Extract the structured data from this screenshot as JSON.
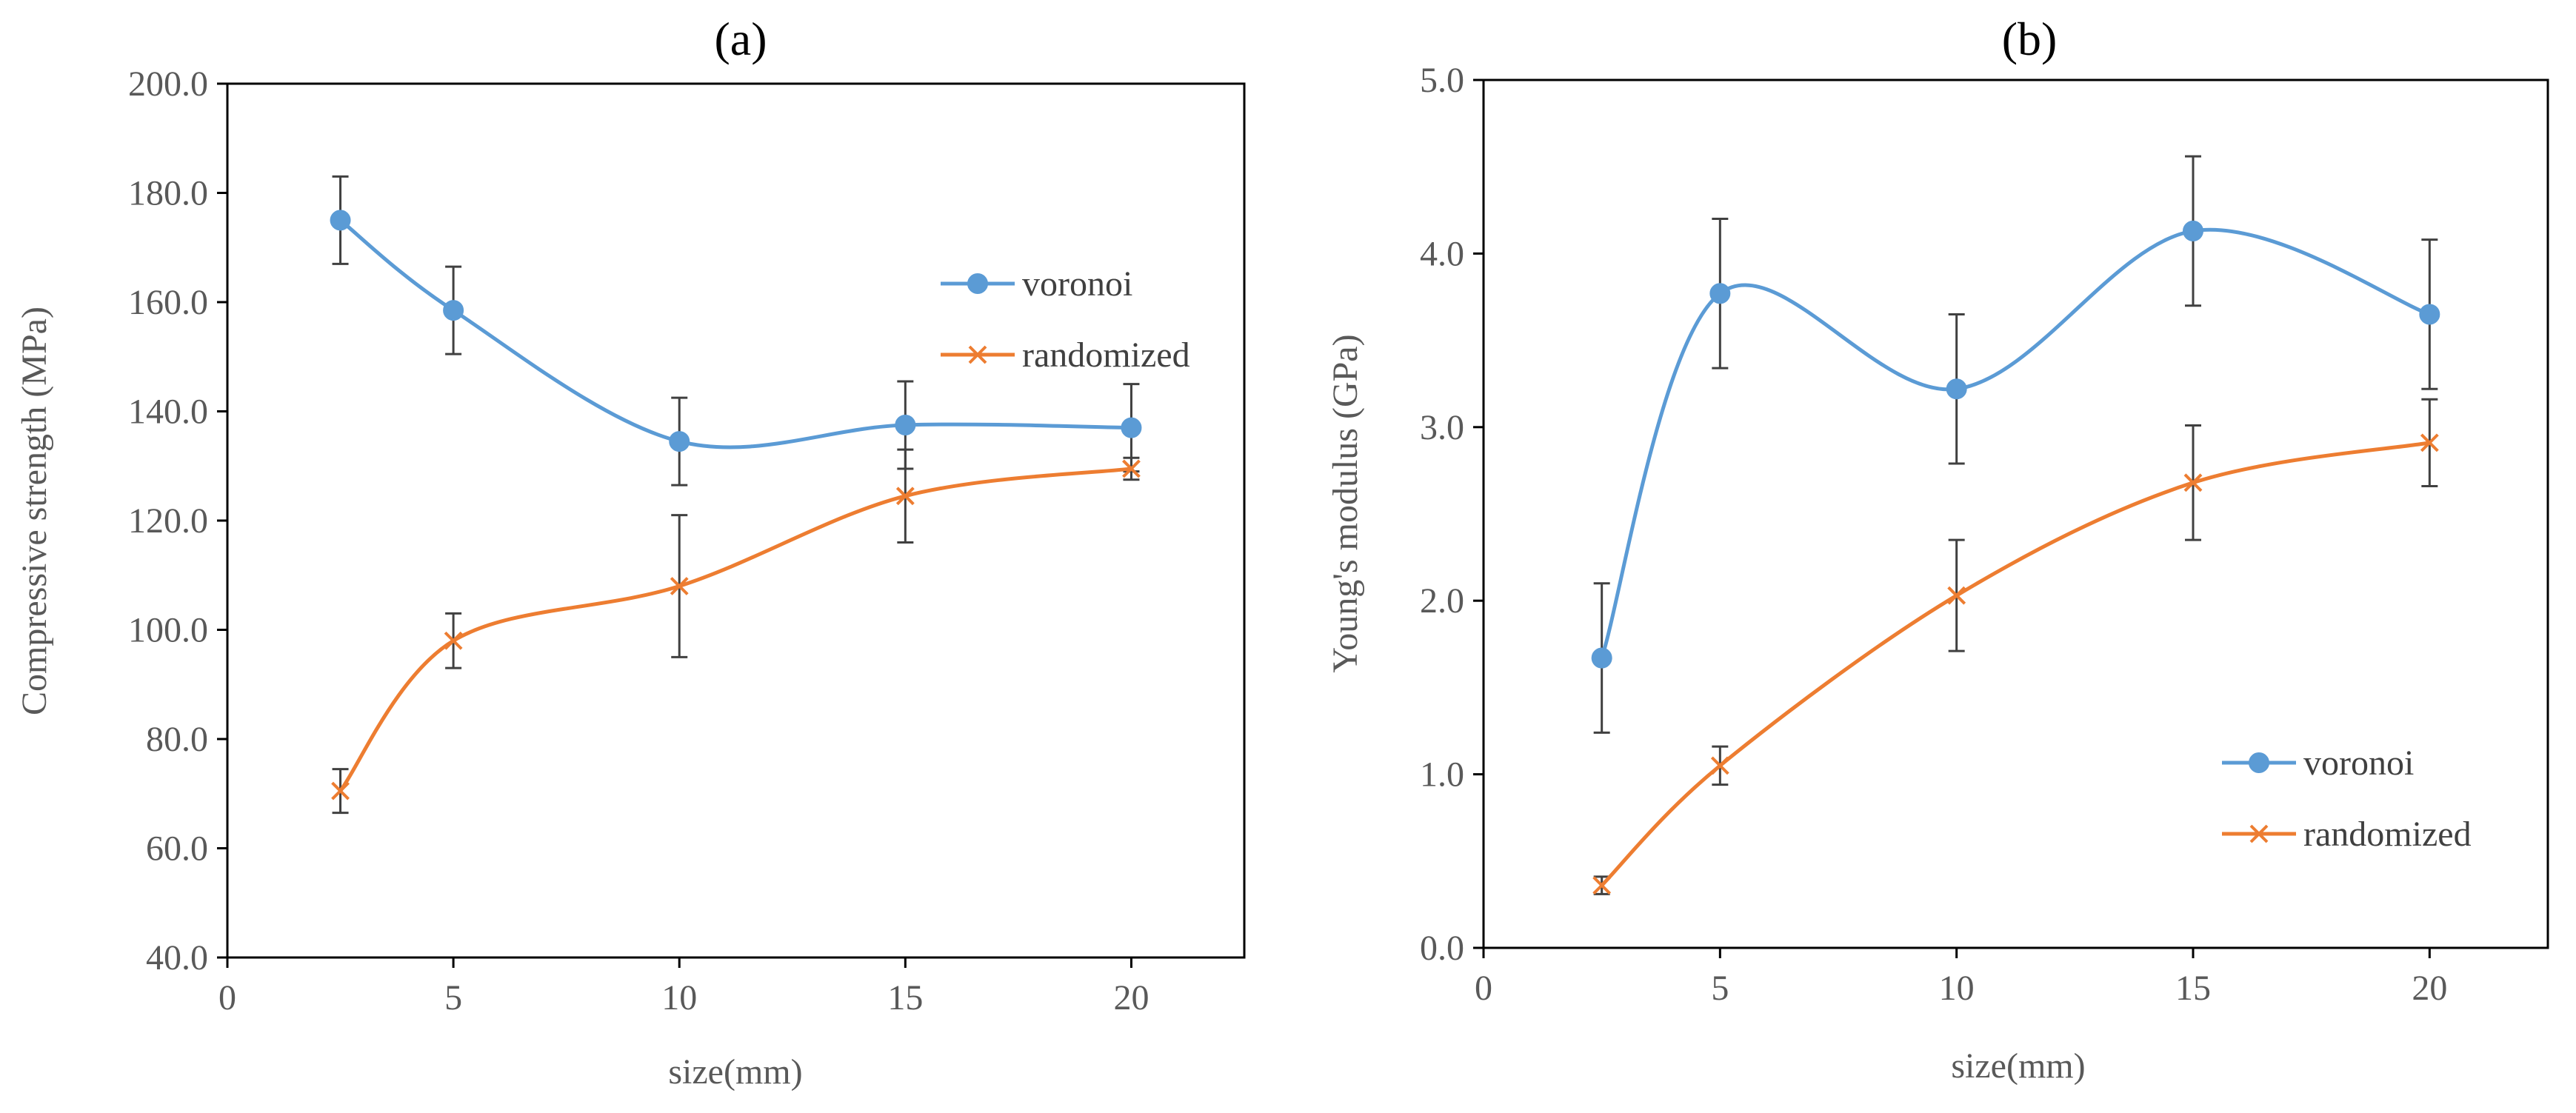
{
  "colors": {
    "voronoi": "#5b9bd5",
    "randomized": "#ed7d31",
    "error_bar": "#404040",
    "axis": "#000000",
    "text": "#595959"
  },
  "chart_data": [
    {
      "type": "line",
      "panel_label": "(a)",
      "title": "(a)",
      "xlabel": "size(mm)",
      "ylabel": "Compressive strength (MPa)",
      "xlim": [
        0,
        22.5
      ],
      "ylim": [
        40,
        200
      ],
      "x_ticks": [
        "0",
        "5",
        "10",
        "15",
        "20"
      ],
      "x_tick_values": [
        0,
        5,
        10,
        15,
        20
      ],
      "y_ticks": [
        "40.0",
        "60.0",
        "80.0",
        "100.0",
        "120.0",
        "140.0",
        "160.0",
        "180.0",
        "200.0"
      ],
      "y_tick_values": [
        40,
        60,
        80,
        100,
        120,
        140,
        160,
        180,
        200
      ],
      "grid": false,
      "legend_position": "right-upper",
      "series": [
        {
          "name": "voronoi",
          "marker": "circle",
          "x": [
            2.5,
            5,
            10,
            15,
            20
          ],
          "values": [
            175.0,
            158.5,
            134.5,
            137.5,
            137.0
          ],
          "error": [
            8.0,
            8.0,
            8.0,
            8.0,
            8.0
          ]
        },
        {
          "name": "randomized",
          "marker": "x",
          "x": [
            2.5,
            5,
            10,
            15,
            20
          ],
          "values": [
            70.5,
            98.0,
            108.0,
            124.5,
            129.5
          ],
          "error": [
            4.0,
            5.0,
            13.0,
            8.5,
            2.0
          ]
        }
      ]
    },
    {
      "type": "line",
      "panel_label": "(b)",
      "title": "(b)",
      "xlabel": "size(mm)",
      "ylabel": "Young's modulus (GPa)",
      "xlim": [
        0,
        22.5
      ],
      "ylim": [
        0,
        5
      ],
      "x_ticks": [
        "0",
        "5",
        "10",
        "15",
        "20"
      ],
      "x_tick_values": [
        0,
        5,
        10,
        15,
        20
      ],
      "y_ticks": [
        "0.0",
        "1.0",
        "2.0",
        "3.0",
        "4.0",
        "5.0"
      ],
      "y_tick_values": [
        0,
        1,
        2,
        3,
        4,
        5
      ],
      "grid": false,
      "legend_position": "bottom-right",
      "series": [
        {
          "name": "voronoi",
          "marker": "circle",
          "x": [
            2.5,
            5,
            10,
            15,
            20
          ],
          "values": [
            1.67,
            3.77,
            3.22,
            4.13,
            3.65
          ],
          "error": [
            0.43,
            0.43,
            0.43,
            0.43,
            0.43
          ]
        },
        {
          "name": "randomized",
          "marker": "x",
          "x": [
            2.5,
            5,
            10,
            15,
            20
          ],
          "values": [
            0.36,
            1.05,
            2.03,
            2.68,
            2.91
          ],
          "error": [
            0.05,
            0.11,
            0.32,
            0.33,
            0.25
          ]
        }
      ]
    }
  ]
}
